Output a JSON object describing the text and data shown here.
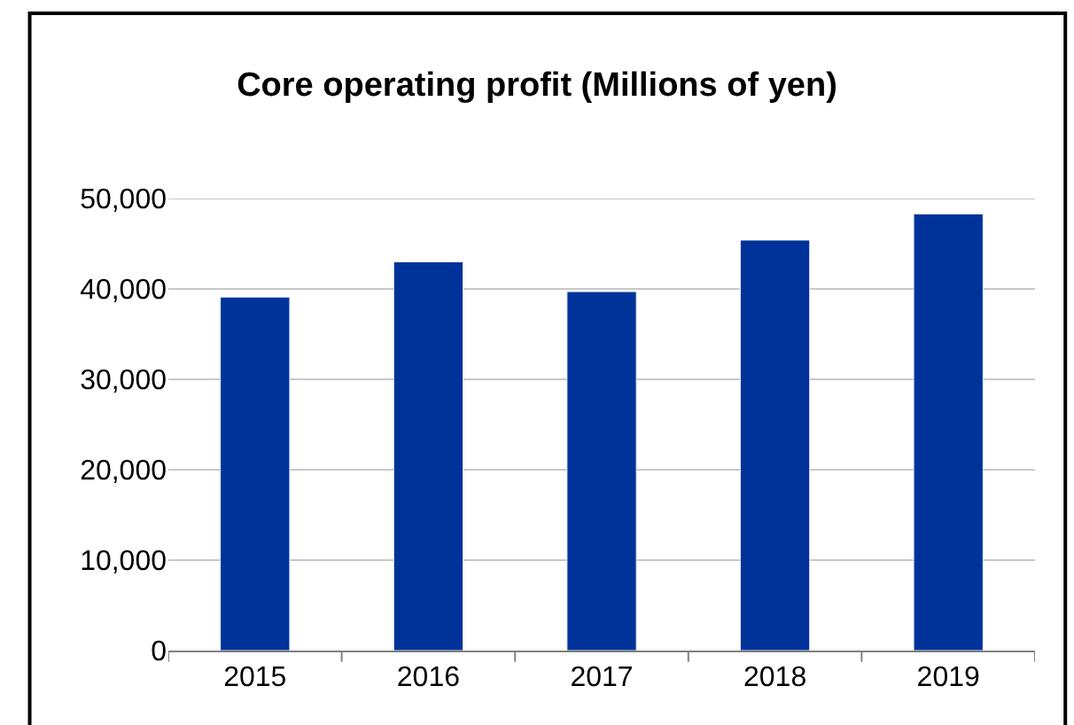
{
  "chart_data": {
    "type": "bar",
    "title": "Core operating profit (Millions of yen)",
    "categories": [
      "2015",
      "2016",
      "2017",
      "2018",
      "2019"
    ],
    "values": [
      39100,
      43000,
      39700,
      45400,
      48300
    ],
    "color": "#003399",
    "ylim": [
      0,
      50000
    ],
    "yticks": [
      {
        "value": 0,
        "label": "0"
      },
      {
        "value": 10000,
        "label": "10,000"
      },
      {
        "value": 20000,
        "label": "20,000"
      },
      {
        "value": 30000,
        "label": "30,000"
      },
      {
        "value": 40000,
        "label": "40,000"
      },
      {
        "value": 50000,
        "label": "50,000"
      }
    ],
    "grid": "y"
  }
}
